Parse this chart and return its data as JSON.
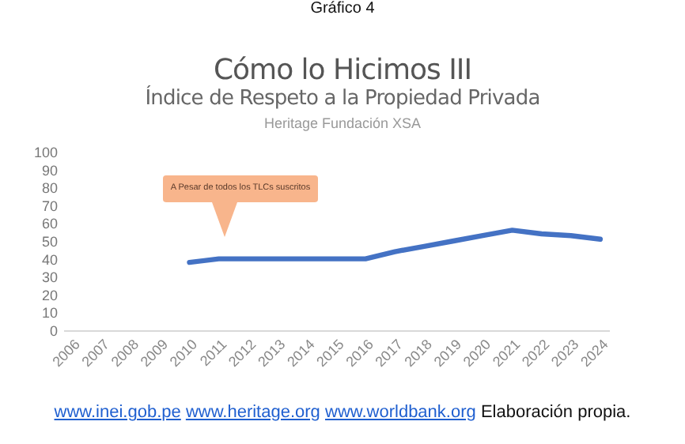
{
  "chart_data": {
    "type": "line",
    "title": "Cómo lo Hicimos III",
    "subtitle": "Índice de Respeto a la Propiedad Privada",
    "categories": [
      "2006",
      "2007",
      "2008",
      "2009",
      "2010",
      "2011",
      "2012",
      "2013",
      "2014",
      "2015",
      "2016",
      "2017",
      "2018",
      "2019",
      "2020",
      "2021",
      "2022",
      "2023",
      "2024"
    ],
    "series": [
      {
        "color": "#4472c4",
        "values": [
          null,
          null,
          null,
          null,
          38,
          40,
          40,
          40,
          40,
          40,
          40,
          44,
          47,
          50,
          53,
          56,
          54,
          53,
          51
        ]
      }
    ],
    "ylim": [
      0,
      100
    ],
    "yticks": [
      0,
      10,
      20,
      30,
      40,
      50,
      60,
      70,
      80,
      90,
      100
    ],
    "grid": false,
    "marker": "none",
    "line_style": "solid",
    "annotations": [
      "Gráfico 4",
      "Heritage Fundación XSA",
      "A Pesar de todos los TLCs suscritos",
      "www.inei.gob.pe www.heritage.org www.worldbank.org Elaboración propia."
    ]
  }
}
